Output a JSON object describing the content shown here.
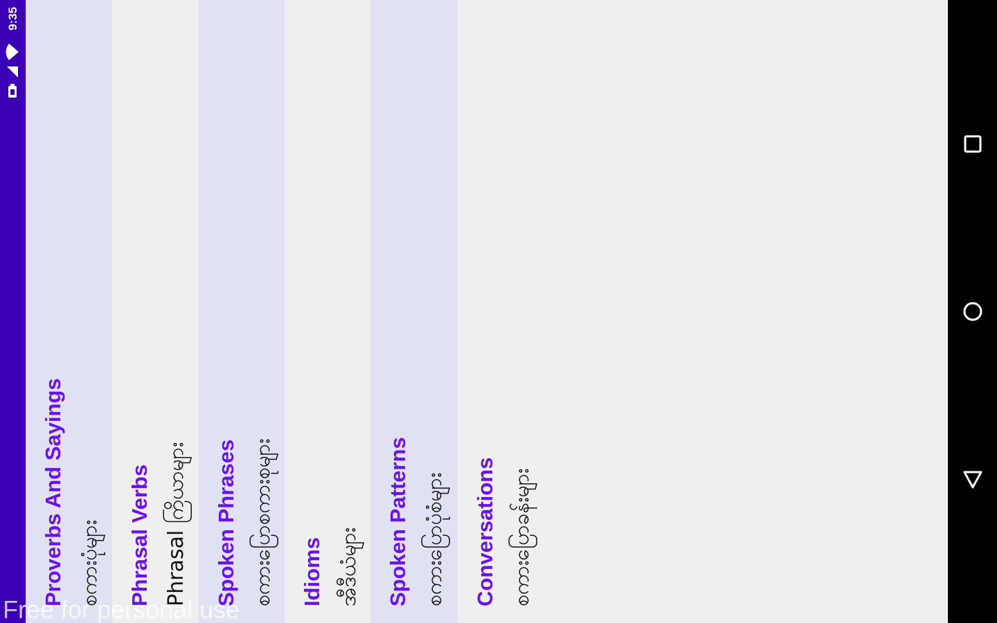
{
  "status_bar": {
    "time": "9:35",
    "icons": [
      "wifi-icon",
      "signal-icon",
      "battery-icon"
    ],
    "background": "#3b00b5"
  },
  "list": {
    "items": [
      {
        "title": "Proverbs And Sayings",
        "subtitle": "စကားပုံများ"
      },
      {
        "title": "Phrasal Verbs",
        "subtitle": "Phrasal ကြိယာများ"
      },
      {
        "title": "Spoken Phrases",
        "subtitle": "စကားပြောစကားစုများ"
      },
      {
        "title": "Idioms",
        "subtitle": "အီဒီယံများ"
      },
      {
        "title": "Spoken Patterns",
        "subtitle": "စကားပြောပုံစံများ"
      },
      {
        "title": "Conversations",
        "subtitle": "စကားပြောခန်းများ"
      }
    ],
    "title_color": "#6a10f5",
    "shade_color": "#e0e2f4"
  },
  "watermark": "Free for personal use",
  "nav_bar": {
    "icons": [
      "recents-square-icon",
      "home-circle-icon",
      "back-triangle-icon"
    ]
  }
}
